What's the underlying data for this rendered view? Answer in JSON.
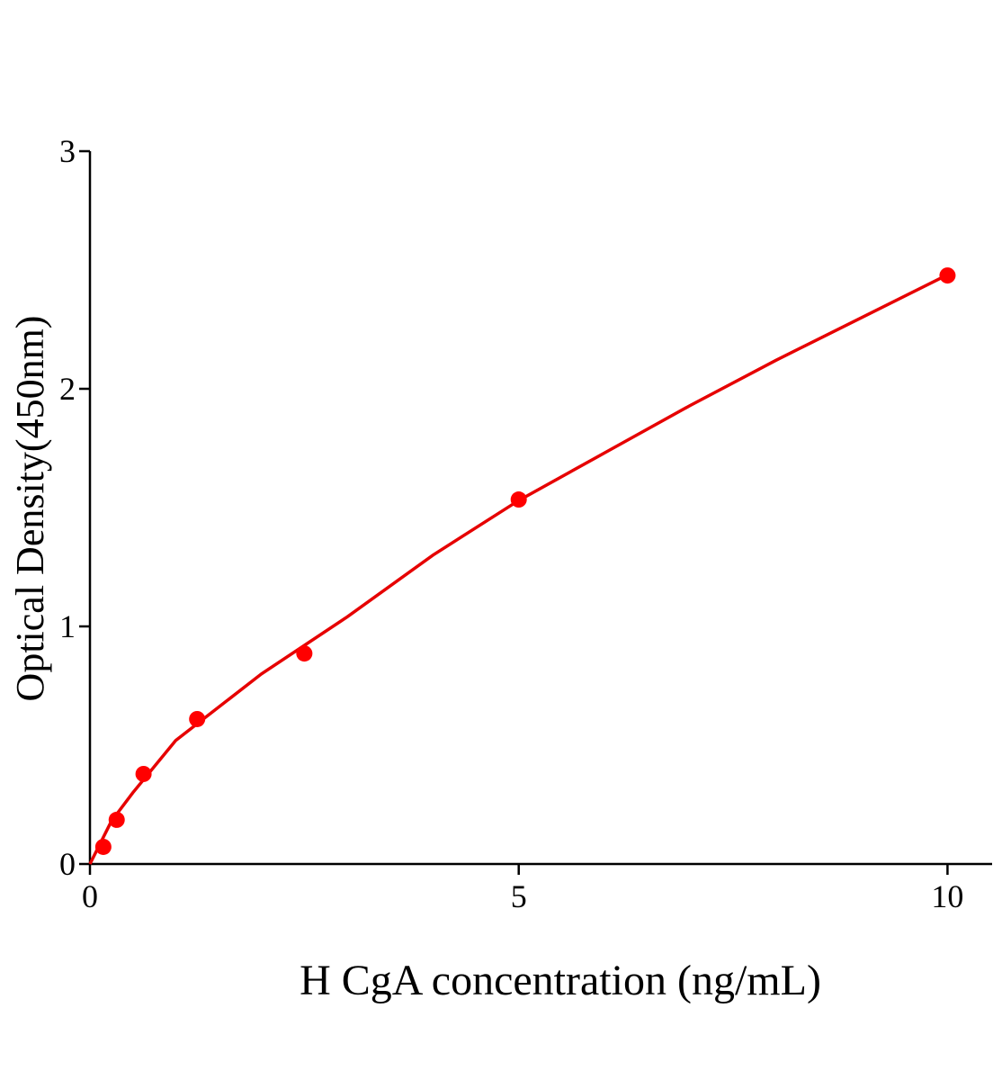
{
  "chart_data": {
    "type": "scatter",
    "x_label": "H CgA concentration (ng/mL)",
    "y_label": "Optical Density(450nm)",
    "x": [
      0.156,
      0.312,
      0.625,
      1.25,
      2.5,
      5,
      10
    ],
    "values": [
      0.072,
      0.186,
      0.379,
      0.61,
      0.886,
      1.534,
      2.477
    ],
    "color": "#ff0000",
    "fit": {
      "color": "#e60000",
      "x": [
        0,
        0.25,
        0.5,
        1,
        2,
        3,
        4,
        5,
        6,
        7,
        8,
        9,
        10
      ],
      "values": [
        0,
        0.18,
        0.3,
        0.52,
        0.8,
        1.04,
        1.3,
        1.53,
        1.73,
        1.93,
        2.12,
        2.3,
        2.48
      ]
    },
    "xlim": [
      0,
      10.52
    ],
    "xticks": [
      0,
      5,
      10
    ],
    "ylim": [
      0,
      3
    ],
    "yticks": [
      0,
      1,
      2,
      3
    ]
  }
}
